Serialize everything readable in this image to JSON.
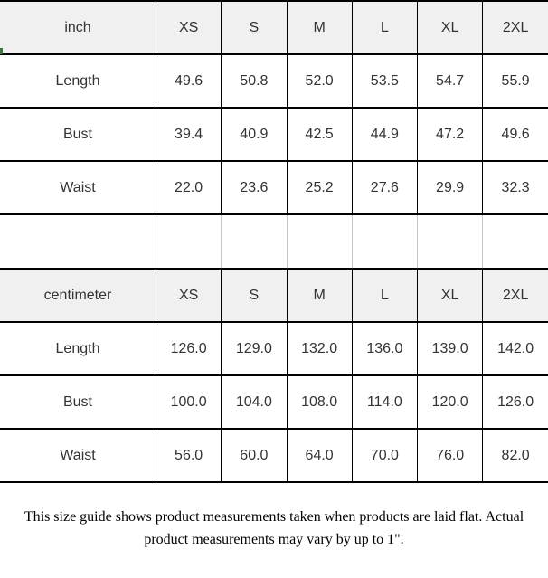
{
  "colors": {
    "header_bg": "#f0f0f0",
    "label_bg": "#f0f0f0",
    "cell_bg": "#ffffff",
    "grid_dark": "#000000",
    "grid_light": "#c9c9c9",
    "text": "#333333",
    "note_text": "#000000",
    "marker_green": "#3b7a3b"
  },
  "tables": [
    {
      "unit_label": "inch",
      "columns": [
        "XS",
        "S",
        "M",
        "L",
        "XL",
        "2XL"
      ],
      "rows": [
        {
          "label": "Length",
          "values": [
            "49.6",
            "50.8",
            "52.0",
            "53.5",
            "54.7",
            "55.9"
          ]
        },
        {
          "label": "Bust",
          "values": [
            "39.4",
            "40.9",
            "42.5",
            "44.9",
            "47.2",
            "49.6"
          ]
        },
        {
          "label": "Waist",
          "values": [
            "22.0",
            "23.6",
            "25.2",
            "27.6",
            "29.9",
            "32.3"
          ]
        }
      ]
    },
    {
      "unit_label": "centimeter",
      "columns": [
        "XS",
        "S",
        "M",
        "L",
        "XL",
        "2XL"
      ],
      "rows": [
        {
          "label": "Length",
          "values": [
            "126.0",
            "129.0",
            "132.0",
            "136.0",
            "139.0",
            "142.0"
          ]
        },
        {
          "label": "Bust",
          "values": [
            "100.0",
            "104.0",
            "108.0",
            "114.0",
            "120.0",
            "126.0"
          ]
        },
        {
          "label": "Waist",
          "values": [
            "56.0",
            "60.0",
            "64.0",
            "70.0",
            "76.0",
            "82.0"
          ]
        }
      ]
    }
  ],
  "footer": {
    "note": "This size guide shows product measurements taken when products are laid flat. Actual product measurements may vary by up to 1\"."
  }
}
